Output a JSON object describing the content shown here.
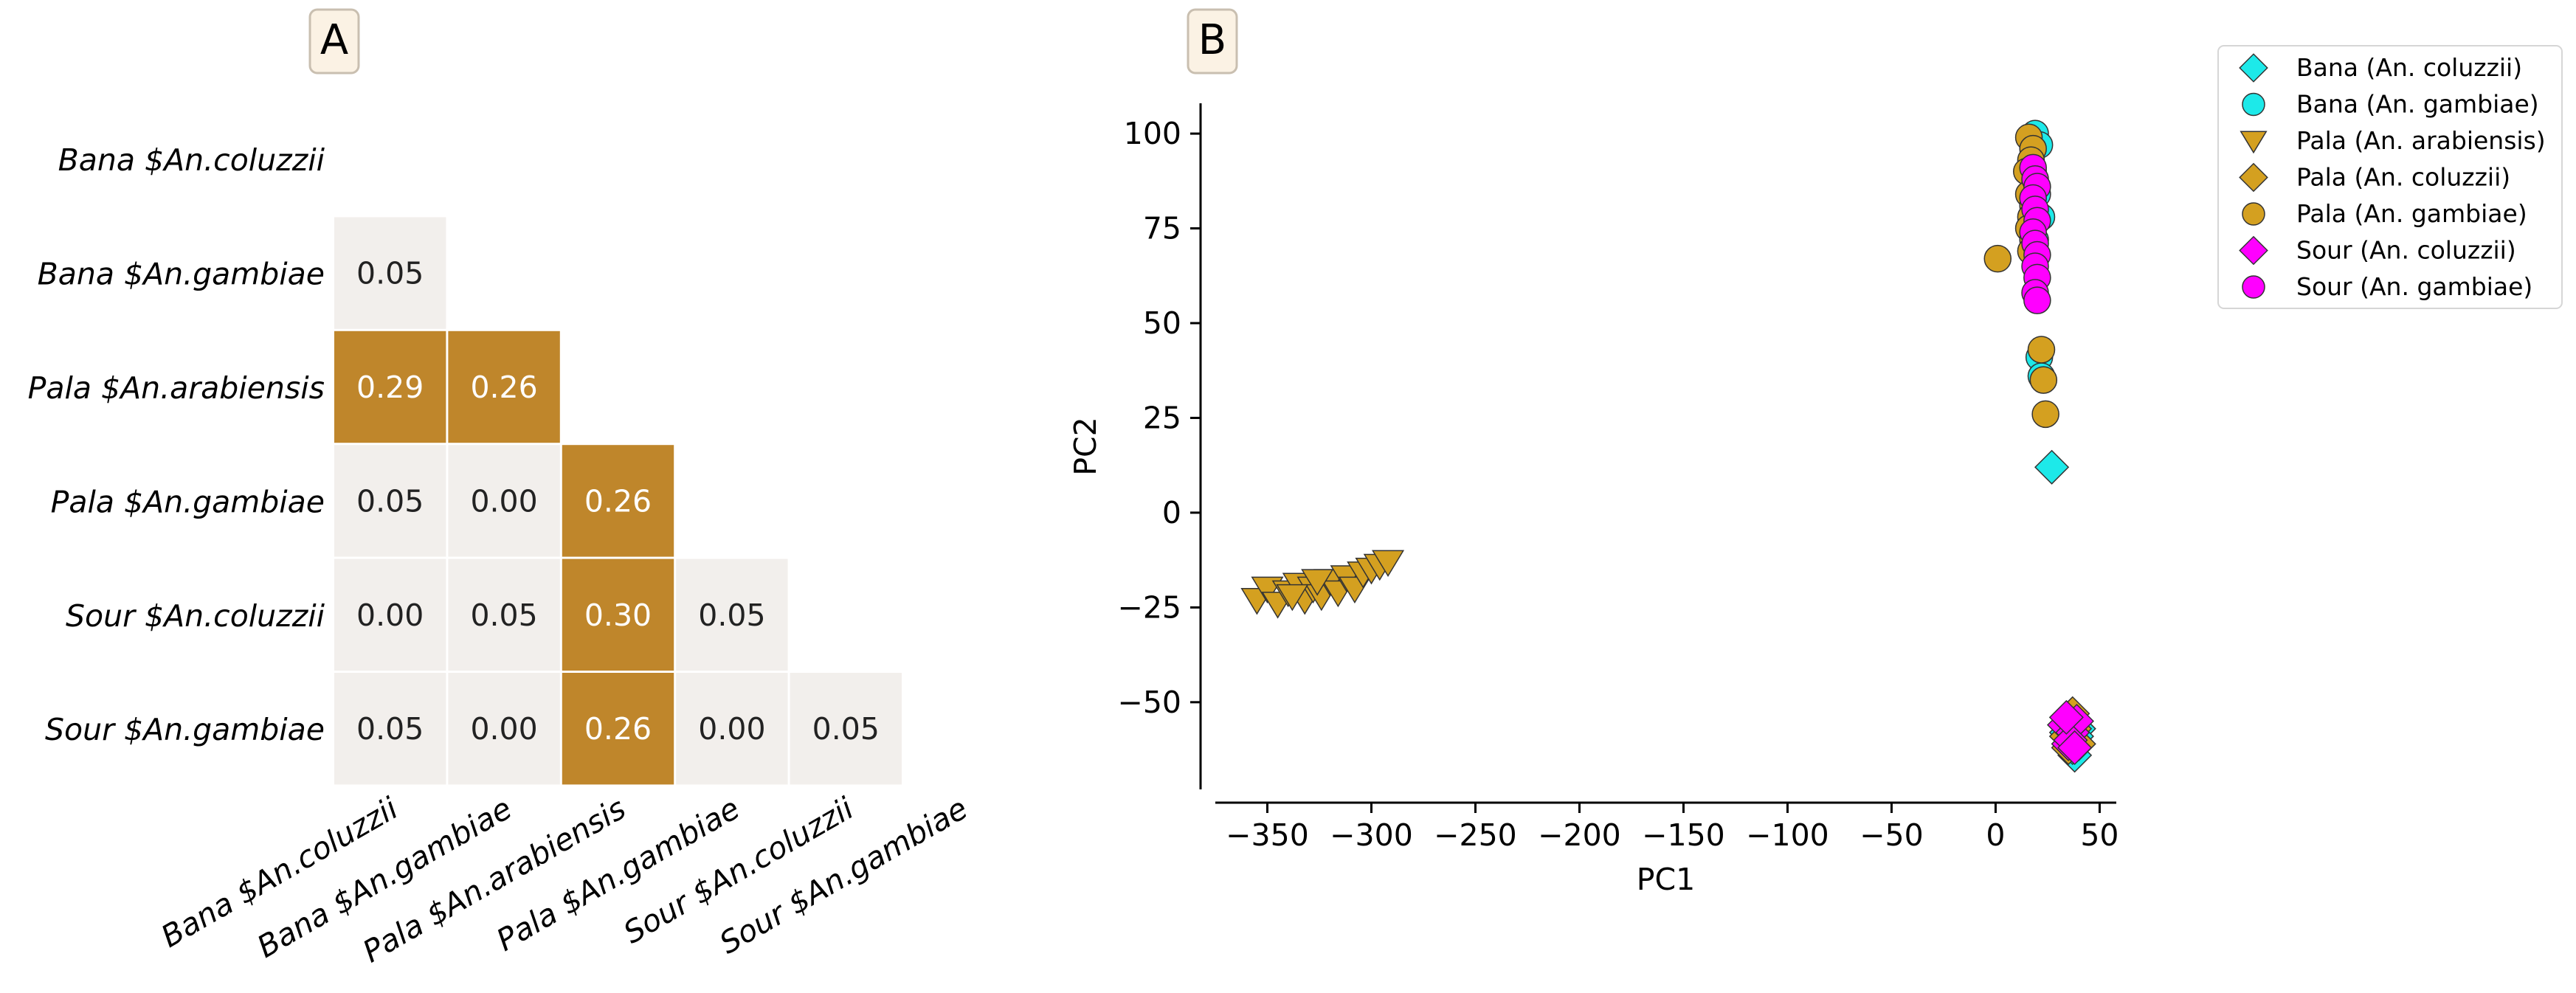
{
  "colors": {
    "heat_low": "#f2efec",
    "heat_high": "#bf862b",
    "text_on_low": "#222222",
    "text_on_high": "#ffffff",
    "cyan": "#1de9e9",
    "gold": "#d4a020",
    "magenta": "#ff00ff",
    "panel_tag_bg": "#fbf2e4"
  },
  "panels": {
    "a_label": "A",
    "b_label": "B"
  },
  "chart_data": [
    {
      "type": "heatmap",
      "title": "",
      "row_labels": [
        "Bana $An.coluzzii",
        "Bana $An.gambiae",
        "Pala $An.arabiensis",
        "Pala $An.gambiae",
        "Sour $An.coluzzii",
        "Sour $An.gambiae"
      ],
      "col_labels": [
        "Bana $An.coluzzii",
        "Bana $An.gambiae",
        "Pala $An.arabiensis",
        "Pala $An.gambiae",
        "Sour $An.coluzzii",
        "Sour $An.gambiae"
      ],
      "matrix": [
        [
          null,
          null,
          null,
          null,
          null,
          null
        ],
        [
          "0.05",
          null,
          null,
          null,
          null,
          null
        ],
        [
          "0.29",
          "0.26",
          null,
          null,
          null,
          null
        ],
        [
          "0.05",
          "0.00",
          "0.26",
          null,
          null,
          null
        ],
        [
          "0.00",
          "0.05",
          "0.30",
          "0.05",
          null,
          null
        ],
        [
          "0.05",
          "0.00",
          "0.26",
          "0.00",
          "0.05",
          null
        ]
      ],
      "threshold": 0.2,
      "layout": "lower-triangle"
    },
    {
      "type": "scatter",
      "title": "",
      "xlabel": "PC1",
      "ylabel": "PC2",
      "xlim": [
        -375,
        58
      ],
      "ylim": [
        -73,
        108
      ],
      "xticks": [
        -350,
        -300,
        -250,
        -200,
        -150,
        -100,
        -50,
        0,
        50
      ],
      "yticks": [
        -50,
        -25,
        0,
        25,
        50,
        75,
        100
      ],
      "xtick_labels": [
        "−350",
        "−300",
        "−250",
        "−200",
        "−150",
        "−100",
        "−50",
        "0",
        "50"
      ],
      "ytick_labels": [
        "−50",
        "−25",
        "0",
        "25",
        "50",
        "75",
        "100"
      ],
      "legend_position": "outside-upper-right",
      "series": [
        {
          "name": "Bana (An. coluzzii)",
          "marker": "diamond",
          "color": "#1de9e9",
          "points": [
            [
              27,
              12
            ],
            [
              38,
              -64
            ],
            [
              36,
              -60
            ],
            [
              40,
              -57
            ],
            [
              34,
              -58
            ],
            [
              37,
              -62
            ],
            [
              39,
              -59
            ]
          ]
        },
        {
          "name": "Bana (An. gambiae)",
          "marker": "circle",
          "color": "#1de9e9",
          "points": [
            [
              19,
              100
            ],
            [
              21,
              97
            ],
            [
              18,
              90
            ],
            [
              20,
              84
            ],
            [
              22,
              78
            ],
            [
              19,
              72
            ],
            [
              21,
              41
            ],
            [
              22,
              36
            ]
          ]
        },
        {
          "name": "Pala (An. arabiensis)",
          "marker": "triangle-down",
          "color": "#d4a020",
          "points": [
            [
              -355,
              -23
            ],
            [
              -350,
              -20
            ],
            [
              -345,
              -24
            ],
            [
              -340,
              -21
            ],
            [
              -335,
              -19
            ],
            [
              -332,
              -23
            ],
            [
              -328,
              -20
            ],
            [
              -324,
              -22
            ],
            [
              -320,
              -18
            ],
            [
              -316,
              -21
            ],
            [
              -312,
              -17
            ],
            [
              -308,
              -20
            ],
            [
              -304,
              -16
            ],
            [
              -300,
              -15
            ],
            [
              -296,
              -14
            ],
            [
              -292,
              -13
            ],
            [
              -338,
              -22
            ],
            [
              -326,
              -18
            ]
          ]
        },
        {
          "name": "Pala (An. coluzzii)",
          "marker": "diamond",
          "color": "#d4a020",
          "points": [
            [
              36,
              -55
            ],
            [
              38,
              -57
            ],
            [
              34,
              -59
            ],
            [
              40,
              -61
            ],
            [
              37,
              -53
            ],
            [
              35,
              -62
            ]
          ]
        },
        {
          "name": "Pala (An. gambiae)",
          "marker": "circle",
          "color": "#d4a020",
          "points": [
            [
              16,
              99
            ],
            [
              18,
              96
            ],
            [
              17,
              93
            ],
            [
              15,
              90
            ],
            [
              19,
              87
            ],
            [
              16,
              84
            ],
            [
              18,
              81
            ],
            [
              17,
              78
            ],
            [
              16,
              75
            ],
            [
              18,
              72
            ],
            [
              17,
              69
            ],
            [
              1,
              67
            ],
            [
              22,
              43
            ],
            [
              23,
              35
            ],
            [
              24,
              26
            ]
          ]
        },
        {
          "name": "Sour (An. coluzzii)",
          "marker": "diamond",
          "color": "#ff00ff",
          "points": [
            [
              33,
              -56
            ],
            [
              37,
              -58
            ],
            [
              35,
              -61
            ],
            [
              39,
              -55
            ],
            [
              36,
              -60
            ],
            [
              34,
              -54
            ],
            [
              38,
              -62
            ]
          ]
        },
        {
          "name": "Sour (An. gambiae)",
          "marker": "circle",
          "color": "#ff00ff",
          "points": [
            [
              18,
              91
            ],
            [
              19,
              88
            ],
            [
              20,
              86
            ],
            [
              18,
              83
            ],
            [
              19,
              80
            ],
            [
              20,
              77
            ],
            [
              18,
              74
            ],
            [
              19,
              71
            ],
            [
              20,
              68
            ],
            [
              19,
              65
            ],
            [
              20,
              62
            ],
            [
              19,
              58
            ],
            [
              20,
              56
            ]
          ]
        }
      ]
    }
  ]
}
